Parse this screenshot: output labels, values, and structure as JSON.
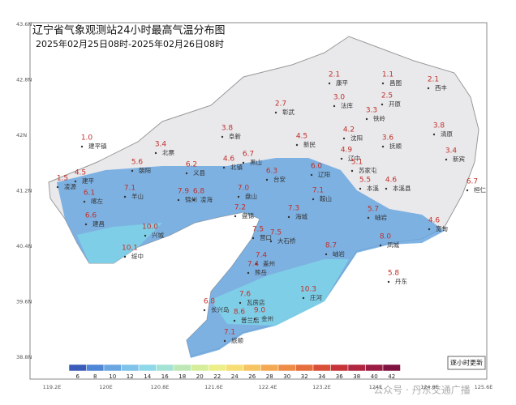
{
  "header": {
    "title": "辽宁省气象观测站24小时最高气温分布图",
    "subtitle": "2025年02月25日08时-2025年02月26日08时"
  },
  "lat_labels": [
    "43.6N",
    "42.8N",
    "42N",
    "41.2N",
    "40.4N",
    "39.6N",
    "38.8N"
  ],
  "lon_labels": [
    "119.2E",
    "120E",
    "120.8E",
    "121.6E",
    "122.4E",
    "123.2E",
    "124E",
    "124.8E",
    "125.6E"
  ],
  "colorbar": [
    "6",
    "8",
    "10",
    "12",
    "14",
    "16",
    "18",
    "20",
    "22",
    "24",
    "26",
    "28",
    "30",
    "32",
    "34",
    "36",
    "38",
    "40",
    "42"
  ],
  "stations": [
    {
      "value": "2.1",
      "name": "康平"
    },
    {
      "value": "1.1",
      "name": "昌图"
    },
    {
      "value": "2.1",
      "name": "西丰"
    },
    {
      "value": "2.7",
      "name": "彰武"
    },
    {
      "value": "3.0",
      "name": "法库"
    },
    {
      "value": "2.5",
      "name": "开原"
    },
    {
      "value": "3.3",
      "name": "铁岭"
    },
    {
      "value": "3.8",
      "name": "清原"
    },
    {
      "value": "1.0",
      "name": "建平镇"
    },
    {
      "value": "3.4",
      "name": "北票"
    },
    {
      "value": "3.8",
      "name": "阜新"
    },
    {
      "value": "4.5",
      "name": "新民"
    },
    {
      "value": "4.2",
      "name": "沈阳"
    },
    {
      "value": "3.6",
      "name": "抚顺"
    },
    {
      "value": "3.4",
      "name": "新宾"
    },
    {
      "value": "4.5",
      "name": "建平"
    },
    {
      "value": "5.6",
      "name": "朝阳"
    },
    {
      "value": "6.2",
      "name": "义县"
    },
    {
      "value": "4.6",
      "name": "北镇"
    },
    {
      "value": "6.7",
      "name": "黑山"
    },
    {
      "value": "4.9",
      "name": "辽中"
    },
    {
      "value": "5.1",
      "name": "苏家屯"
    },
    {
      "value": "1.5",
      "name": "凌源"
    },
    {
      "value": "6.3",
      "name": "台安"
    },
    {
      "value": "6.0",
      "name": "辽阳"
    },
    {
      "value": "5.5",
      "name": "本溪"
    },
    {
      "value": "4.6",
      "name": "本溪县"
    },
    {
      "value": "6.7",
      "name": "桓仁"
    },
    {
      "value": "6.1",
      "name": "喀左"
    },
    {
      "value": "7.1",
      "name": "羊山"
    },
    {
      "value": "7.9",
      "name": "锦州"
    },
    {
      "value": "6.8",
      "name": "凌海"
    },
    {
      "value": "7.0",
      "name": "盘山"
    },
    {
      "value": "7.1",
      "name": "鞍山"
    },
    {
      "value": "6.6",
      "name": "建昌"
    },
    {
      "value": "7.2",
      "name": "盘锦"
    },
    {
      "value": "7.3",
      "name": "海城"
    },
    {
      "value": "5.7",
      "name": "岫岩"
    },
    {
      "value": "4.6",
      "name": "宽甸"
    },
    {
      "value": "10.0",
      "name": "兴城"
    },
    {
      "value": "7.5",
      "name": "营口"
    },
    {
      "value": "7.5",
      "name": "大石桥"
    },
    {
      "value": "10.1",
      "name": "绥中"
    },
    {
      "value": "7.4",
      "name": "盖州"
    },
    {
      "value": "8.7",
      "name": "岫岩"
    },
    {
      "value": "8.0",
      "name": "凤城"
    },
    {
      "value": "7.4",
      "name": "熊岳"
    },
    {
      "value": "5.8",
      "name": "丹东"
    },
    {
      "value": "7.6",
      "name": "瓦房店"
    },
    {
      "value": "10.3",
      "name": "庄河"
    },
    {
      "value": "8.6",
      "name": "普兰店"
    },
    {
      "value": "9.0",
      "name": "金州"
    },
    {
      "value": "7.1",
      "name": "旅顺"
    },
    {
      "value": "6.8",
      "name": "长兴岛"
    }
  ],
  "footer": "逐小时更新",
  "watermark": "公众号 · 丹东交通广播"
}
